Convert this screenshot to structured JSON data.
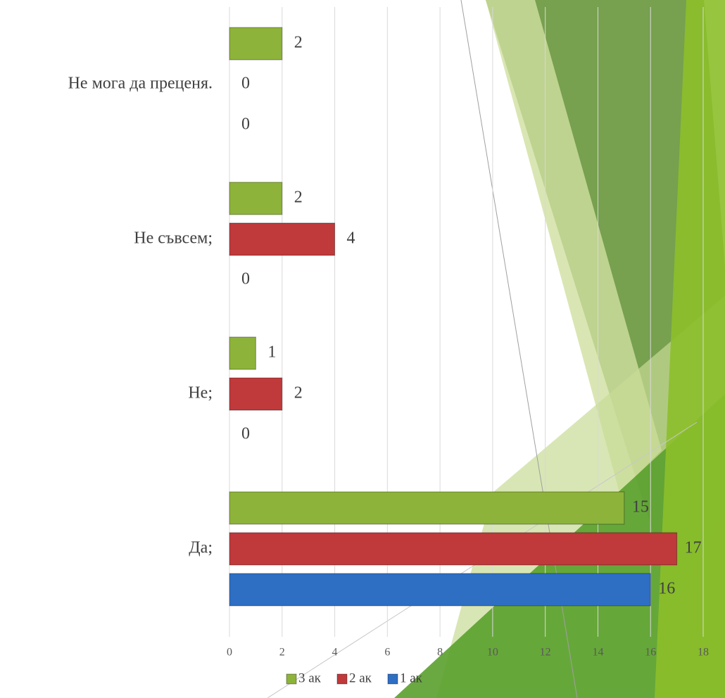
{
  "chart_data": {
    "type": "bar",
    "orientation": "horizontal",
    "categories": [
      "Да;",
      "Не;",
      "Не съвсем;",
      "Не мога да преценя."
    ],
    "series": [
      {
        "name": "1 ак",
        "color": "#2e6fc4",
        "values": [
          16,
          0,
          0,
          0
        ]
      },
      {
        "name": "2 ак",
        "color": "#c0393b",
        "values": [
          17,
          2,
          4,
          0
        ]
      },
      {
        "name": "3 ак",
        "color": "#8db33a",
        "values": [
          15,
          1,
          2,
          2
        ]
      }
    ],
    "xlim": [
      0,
      18
    ],
    "xticks": [
      0,
      2,
      4,
      6,
      8,
      10,
      12,
      14,
      16,
      18
    ],
    "grid": true,
    "legend": "bottom"
  }
}
